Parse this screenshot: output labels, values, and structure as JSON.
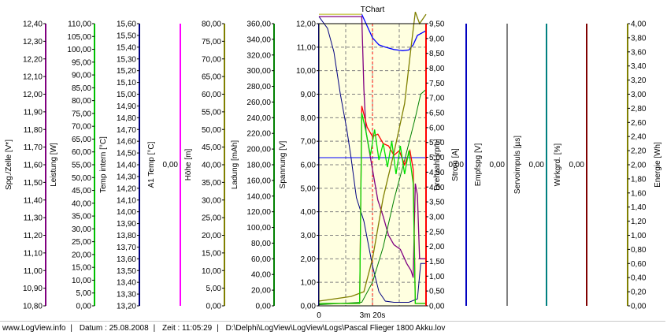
{
  "chart_data": {
    "type": "line",
    "title": "TChart",
    "title_color": "#0000ff",
    "plot_background": "#ffffe0",
    "grid": true,
    "x_axis": {
      "ticks": [
        "0",
        "3m 20s"
      ],
      "cursor_at": "3m 20s"
    },
    "axes": [
      {
        "id": "spg",
        "label": "Spg./Zelle [V*]",
        "color": "#800080",
        "min": 10.8,
        "max": 12.4,
        "ticks": [
          "12,40",
          "12,30",
          "12,20",
          "12,10",
          "12,00",
          "11,90",
          "11,80",
          "11,70",
          "11,60",
          "11,50",
          "11,40",
          "11,30",
          "11,20",
          "11,10",
          "11,00",
          "10,90",
          "10,80"
        ]
      },
      {
        "id": "leistung",
        "label": "Leistung [W]",
        "color": "#00c000",
        "min": 0,
        "max": 110,
        "ticks": [
          "110,00",
          "105,00",
          "100,00",
          "95,00",
          "90,00",
          "85,00",
          "80,00",
          "75,00",
          "70,00",
          "65,00",
          "60,00",
          "55,00",
          "50,00",
          "45,00",
          "40,00",
          "35,00",
          "30,00",
          "25,00",
          "20,00",
          "15,00",
          "10,00",
          "5,00",
          "0,00"
        ]
      },
      {
        "id": "temp_intern",
        "label": "Temp intern [°C]",
        "color": "#000080",
        "min": 13.2,
        "max": 15.6,
        "ticks": [
          "15,60",
          "15,50",
          "15,40",
          "15,30",
          "15,20",
          "15,10",
          "15,00",
          "14,90",
          "14,80",
          "14,70",
          "14,60",
          "14,50",
          "14,40",
          "14,30",
          "14,20",
          "14,10",
          "14,00",
          "13,90",
          "13,80",
          "13,70",
          "13,60",
          "13,50",
          "13,40",
          "13,30",
          "13,20"
        ]
      },
      {
        "id": "a1_temp",
        "label": "A1 Temp [°C]",
        "color": "#ff00ff",
        "value_label": "0,00"
      },
      {
        "id": "hoehe",
        "label": "Höhe [m]",
        "color": "#808000",
        "min": 0,
        "max": 80,
        "ticks": [
          "80,00",
          "75,00",
          "70,00",
          "65,00",
          "60,00",
          "55,00",
          "50,00",
          "45,00",
          "40,00",
          "35,00",
          "30,00",
          "25,00",
          "20,00",
          "15,00",
          "10,00",
          "5,00",
          "0,00"
        ]
      },
      {
        "id": "ladung",
        "label": "Ladung [mAh]",
        "color": "#008000",
        "min": 0,
        "max": 360,
        "ticks": [
          "360,00",
          "340,00",
          "320,00",
          "300,00",
          "280,00",
          "260,00",
          "240,00",
          "220,00",
          "200,00",
          "180,00",
          "160,00",
          "140,00",
          "120,00",
          "100,00",
          "80,00",
          "60,00",
          "40,00",
          "20,00",
          "0,00"
        ]
      },
      {
        "id": "spannung",
        "label": "Spannung [V]",
        "color": "#0000c0",
        "min": 0,
        "max": 12,
        "ticks": [
          "12,00",
          "11,00",
          "10,00",
          "9,00",
          "8,00",
          "7,00",
          "6,00",
          "5,00",
          "4,00",
          "3,00",
          "2,00",
          "1,00",
          "0,00"
        ]
      },
      {
        "id": "strom",
        "label": "Strom [A]",
        "color": "#ff0000",
        "min": 0,
        "max": 9.5,
        "ticks": [
          "9,50",
          "9,00",
          "8,50",
          "8,00",
          "7,50",
          "7,00",
          "6,50",
          "6,00",
          "5,50",
          "5,00",
          "4,50",
          "4,00",
          "3,50",
          "3,00",
          "2,50",
          "2,00",
          "1,50",
          "1,00",
          "0,50",
          "0,00"
        ]
      },
      {
        "id": "drehzahl",
        "label": "Drehzahl [rpm]",
        "color": "#0000c0",
        "value_label": "0,00"
      },
      {
        "id": "empfspg",
        "label": "Empfspg [V]",
        "color": "#808080",
        "value_label": "0,00"
      },
      {
        "id": "servoimpuls",
        "label": "Servoimpuls [µs]",
        "color": "#008080",
        "value_label": "0,00"
      },
      {
        "id": "wirkgrd",
        "label": "Wirkgrd. [%]",
        "color": "#800000",
        "value_label": "0,00"
      },
      {
        "id": "energie",
        "label": "Energie [Wh]",
        "color": "#808000",
        "min": 0,
        "max": 4,
        "ticks": [
          "4,00",
          "3,80",
          "3,60",
          "3,40",
          "3,20",
          "3,00",
          "2,80",
          "2,60",
          "2,40",
          "2,20",
          "2,00",
          "1,80",
          "1,60",
          "1,40",
          "1,20",
          "1,00",
          "0,80",
          "0,60",
          "0,40",
          "0,20",
          "0,00"
        ]
      }
    ],
    "series": [
      {
        "color": "#0000ff",
        "width": 1.3,
        "points": [
          [
            0,
            12.4
          ],
          [
            0.4,
            12.4
          ],
          [
            0.45,
            11.9
          ],
          [
            0.5,
            11.4
          ],
          [
            0.56,
            11.1
          ],
          [
            0.62,
            11.0
          ],
          [
            0.7,
            10.9
          ],
          [
            0.78,
            10.85
          ],
          [
            0.84,
            10.88
          ],
          [
            0.88,
            11.1
          ],
          [
            0.92,
            11.5
          ],
          [
            0.96,
            11.6
          ],
          [
            1,
            11.7
          ]
        ]
      },
      {
        "color": "#000080",
        "width": 1,
        "points": [
          [
            0,
            12.3
          ],
          [
            0.08,
            11.8
          ],
          [
            0.14,
            10.8
          ],
          [
            0.2,
            9.0
          ],
          [
            0.26,
            7.5
          ],
          [
            0.3,
            6.3
          ],
          [
            0.35,
            4.6
          ],
          [
            0.42,
            3.6
          ],
          [
            0.5,
            1.7
          ],
          [
            0.56,
            0.6
          ],
          [
            0.62,
            0.2
          ],
          [
            0.7,
            0.15
          ],
          [
            0.78,
            0.15
          ],
          [
            0.84,
            0.15
          ],
          [
            0.92,
            0.3
          ],
          [
            0.95,
            1.8
          ],
          [
            1,
            1.8
          ]
        ]
      },
      {
        "color": "#0000ff",
        "width": 1,
        "points": [
          [
            0,
            6.3
          ],
          [
            1,
            6.3
          ]
        ]
      },
      {
        "color": "#800080",
        "width": 1.3,
        "points": [
          [
            0,
            12.3
          ],
          [
            0.4,
            12.3
          ],
          [
            0.42,
            9.2
          ],
          [
            0.44,
            7.4
          ],
          [
            0.5,
            5.8
          ],
          [
            0.55,
            4.5
          ],
          [
            0.6,
            3.8
          ],
          [
            0.65,
            3.0
          ],
          [
            0.7,
            2.6
          ],
          [
            0.76,
            2.4
          ],
          [
            0.82,
            1.8
          ],
          [
            0.86,
            1.5
          ],
          [
            0.88,
            1.2
          ],
          [
            0.9,
            5.2
          ],
          [
            0.92,
            4.7
          ],
          [
            0.94,
            2.0
          ],
          [
            1,
            2.0
          ]
        ]
      },
      {
        "color": "#808000",
        "width": 1.3,
        "points": [
          [
            0,
            0.2
          ],
          [
            0.3,
            0.4
          ],
          [
            0.42,
            0.6
          ],
          [
            0.5,
            2.0
          ],
          [
            0.6,
            4.6
          ],
          [
            0.7,
            6.5
          ],
          [
            0.8,
            8.6
          ],
          [
            0.86,
            11.0
          ],
          [
            0.9,
            12.5
          ],
          [
            0.94,
            12.0
          ],
          [
            1,
            12.4
          ]
        ]
      },
      {
        "color": "#008000",
        "width": 1,
        "points": [
          [
            0,
            0.05
          ],
          [
            0.4,
            0.15
          ],
          [
            0.5,
            1.0
          ],
          [
            0.6,
            2.5
          ],
          [
            0.7,
            4.5
          ],
          [
            0.8,
            6.2
          ],
          [
            0.9,
            8.0
          ],
          [
            0.95,
            9.0
          ],
          [
            1,
            9.2
          ]
        ]
      },
      {
        "color": "#ff0000",
        "width": 1.3,
        "points": [
          [
            0,
            0.1
          ],
          [
            0.38,
            0.1
          ],
          [
            0.4,
            8.5
          ],
          [
            0.45,
            7.6
          ],
          [
            0.5,
            7.2
          ],
          [
            0.55,
            7.3
          ],
          [
            0.6,
            6.9
          ],
          [
            0.65,
            6.8
          ],
          [
            0.7,
            6.4
          ],
          [
            0.75,
            6.6
          ],
          [
            0.8,
            6.0
          ],
          [
            0.85,
            6.6
          ],
          [
            0.88,
            5.8
          ],
          [
            0.9,
            0.1
          ],
          [
            1,
            0.1
          ]
        ]
      },
      {
        "color": "#00e000",
        "width": 1.3,
        "points": [
          [
            0,
            0.1
          ],
          [
            0.38,
            0.1
          ],
          [
            0.4,
            8.2
          ],
          [
            0.44,
            7.4
          ],
          [
            0.48,
            6.4
          ],
          [
            0.52,
            7.5
          ],
          [
            0.56,
            6.2
          ],
          [
            0.6,
            6.9
          ],
          [
            0.64,
            5.9
          ],
          [
            0.68,
            7.0
          ],
          [
            0.72,
            5.6
          ],
          [
            0.76,
            6.8
          ],
          [
            0.8,
            5.6
          ],
          [
            0.84,
            6.6
          ],
          [
            0.88,
            5.2
          ],
          [
            0.9,
            0.1
          ],
          [
            1,
            0.1
          ]
        ]
      },
      {
        "color": "#ffff00",
        "width": 1,
        "points": [
          [
            0,
            12.4
          ],
          [
            0.4,
            12.4
          ]
        ]
      }
    ]
  },
  "status_bar": {
    "site": "www.LogView.info",
    "date": "Datum : 25.08.2008",
    "time": "Zeit : 11:05:29",
    "file": "D:\\Delphi\\LogView\\LogView\\Logs\\Pascal Flieger 1800 Akku.lov"
  }
}
